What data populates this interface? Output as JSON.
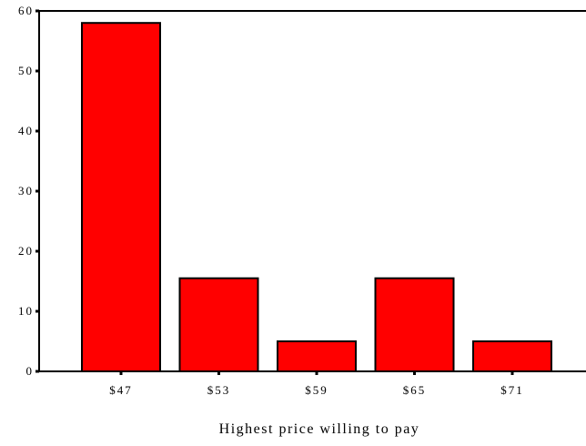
{
  "chart_data": {
    "type": "bar",
    "title": "",
    "xlabel": "Highest price willing to pay",
    "ylabel": "",
    "categories": [
      "$47",
      "$53",
      "$59",
      "$65",
      "$71"
    ],
    "values": [
      58,
      15.5,
      5,
      15.5,
      5
    ],
    "ylim": [
      0,
      60
    ],
    "yticks": [
      "0",
      "10",
      "20",
      "30",
      "40",
      "50",
      "60"
    ],
    "grid": false,
    "legend": "none",
    "bar_color": "#ff0000",
    "bar_edge_color": "#000000"
  }
}
